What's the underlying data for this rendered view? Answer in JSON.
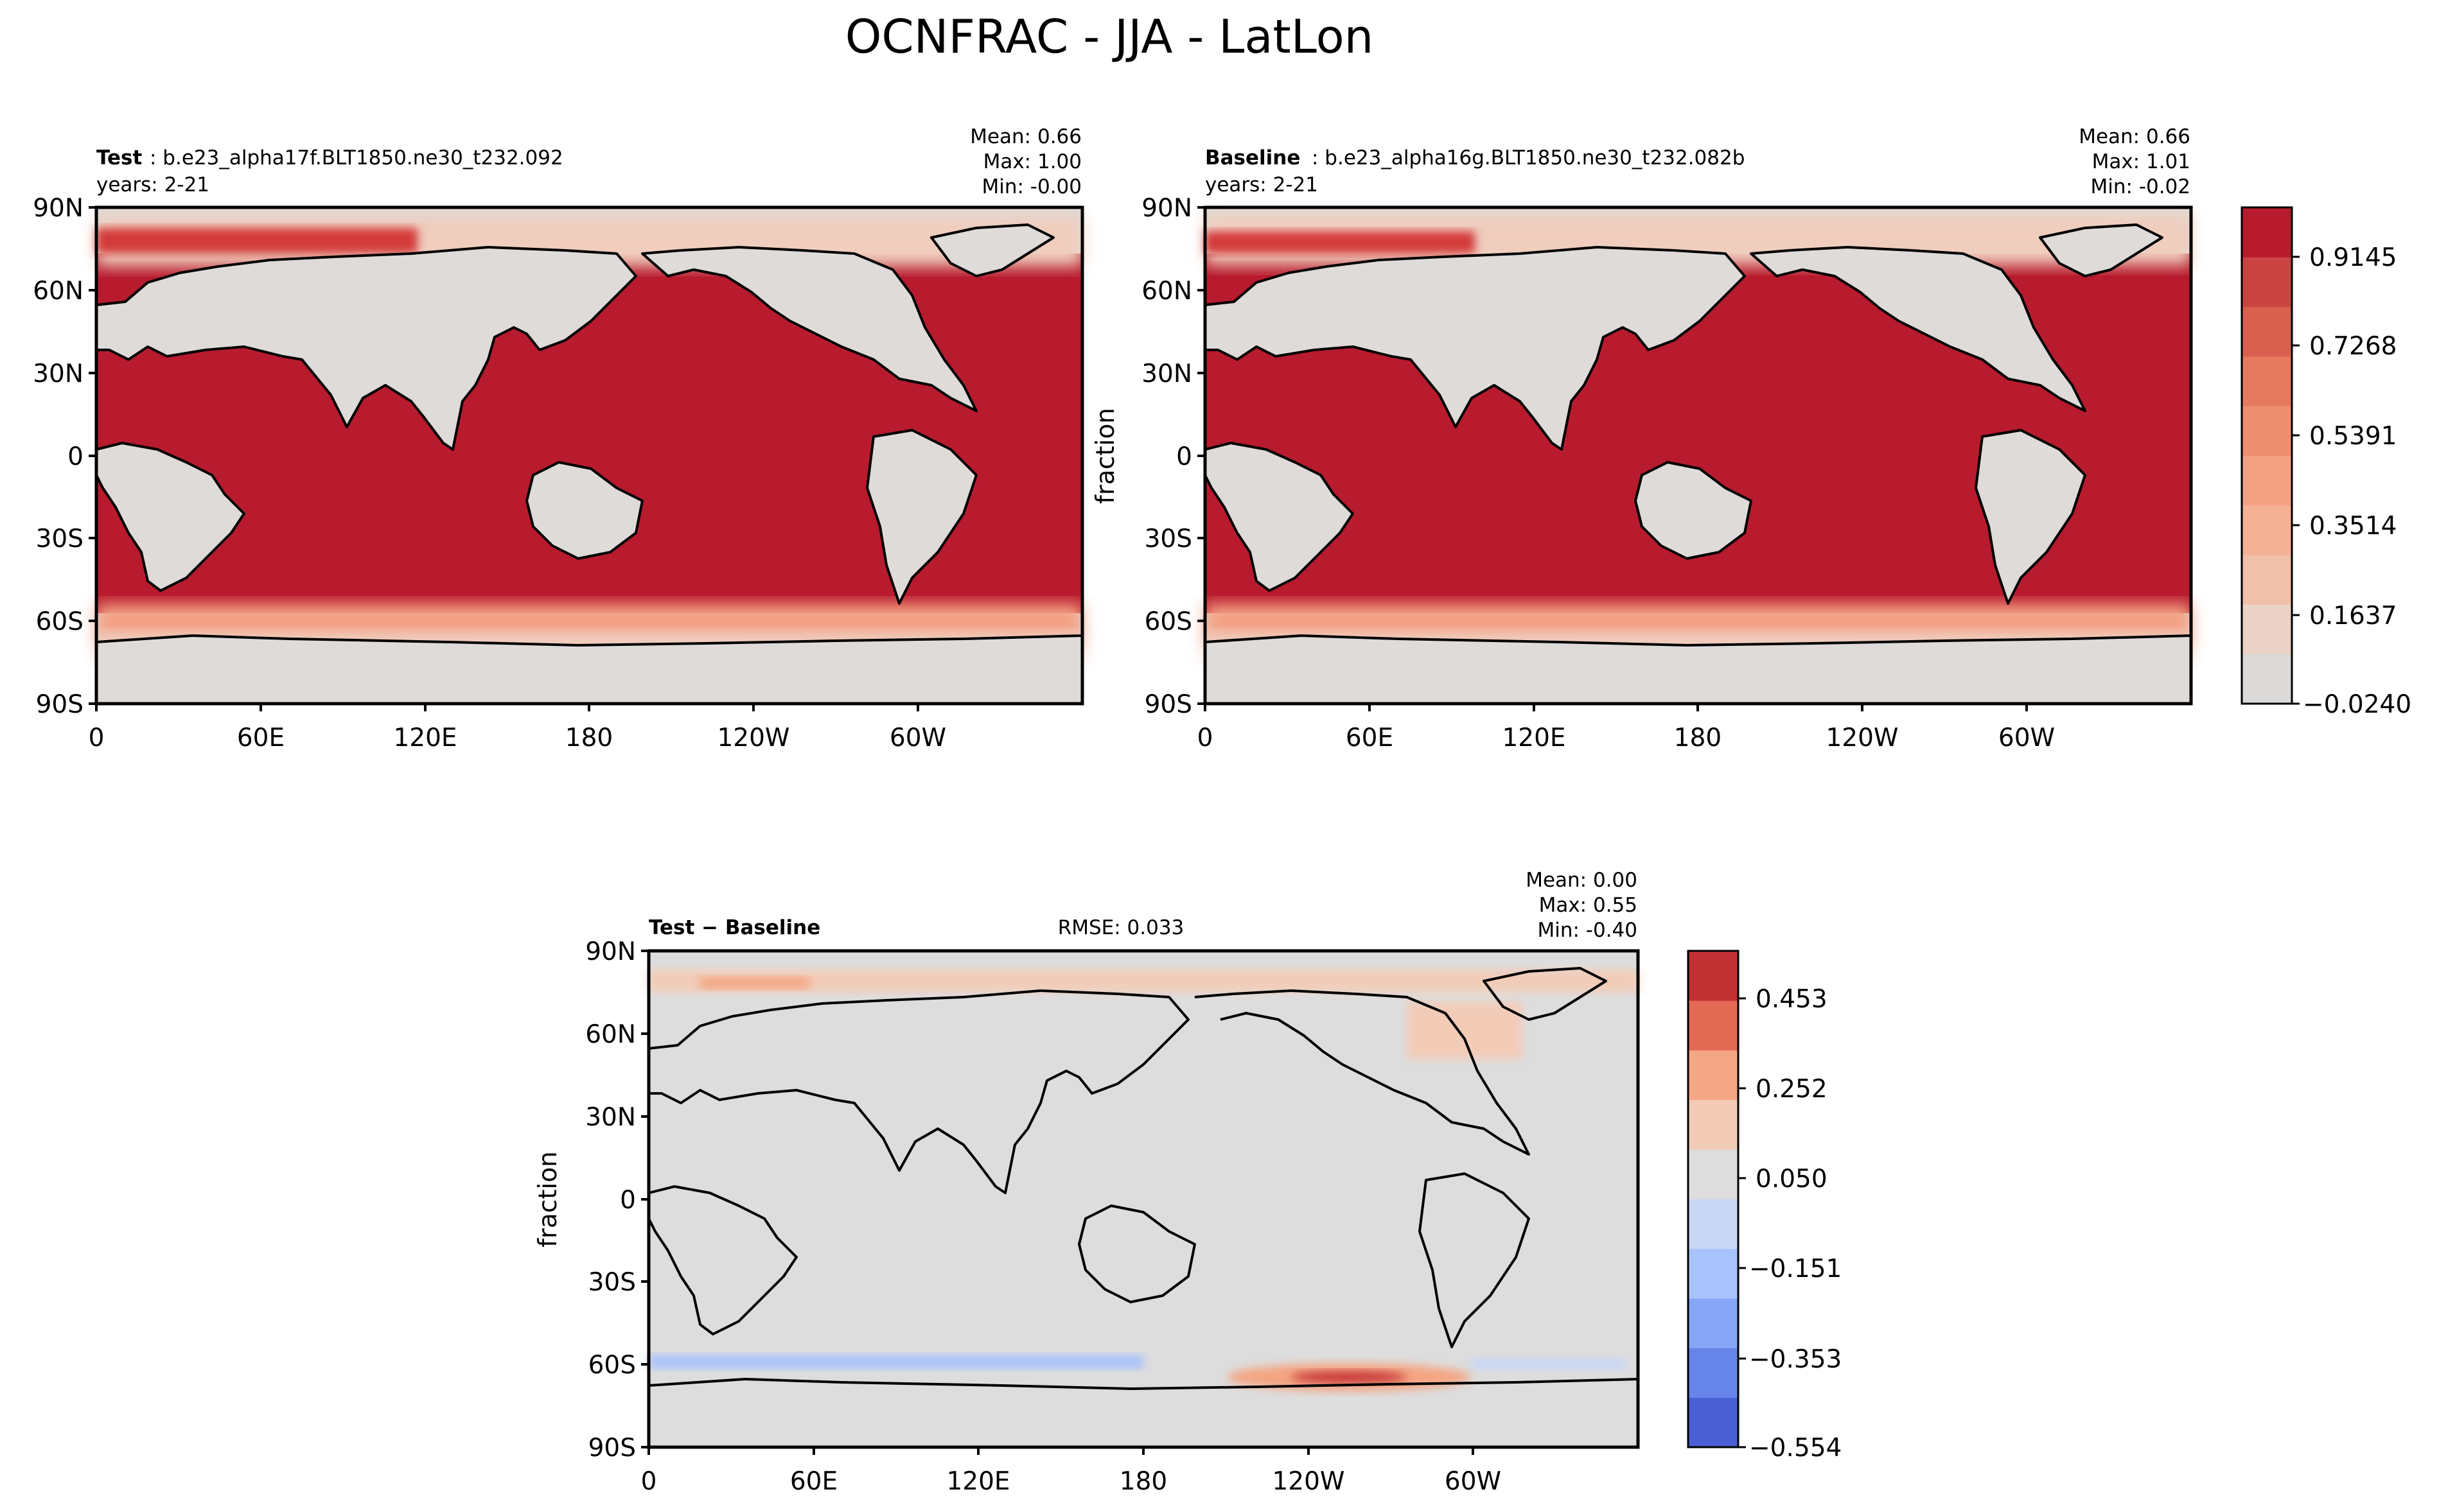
{
  "figure": {
    "title": "OCNFRAC - JJA - LatLon"
  },
  "chart_data": [
    {
      "type": "heatmap",
      "name": "test",
      "label_bold": "Test",
      "label_rest": ": b.e23_alpha17f.BLT1850.ne30_t232.092",
      "years": "years: 2-21",
      "stats": [
        "Mean:  0.66",
        "Max:  1.00",
        "Min: -0.00"
      ],
      "ylabel": "",
      "xticks": [
        "0",
        "60E",
        "120E",
        "180",
        "120W",
        "60W"
      ],
      "yticks": [
        "90N",
        "60N",
        "30N",
        "0",
        "30S",
        "60S",
        "90S"
      ],
      "colors": {
        "ocean": "#b81b2e",
        "land": "#dedbd9",
        "ice": "#f0cdbd",
        "edge": "#f4a184"
      }
    },
    {
      "type": "heatmap",
      "name": "baseline",
      "label_bold": "Baseline",
      "label_rest": ": b.e23_alpha16g.BLT1850.ne30_t232.082b",
      "years": "years: 2-21",
      "stats": [
        "Mean:  0.66",
        "Max:  1.01",
        "Min: -0.02"
      ],
      "ylabel": "fraction",
      "xticks": [
        "0",
        "60E",
        "120E",
        "180",
        "120W",
        "60W"
      ],
      "yticks": [
        "90N",
        "60N",
        "30N",
        "0",
        "30S",
        "60S",
        "90S"
      ],
      "colors": {
        "ocean": "#b81b2e",
        "land": "#dedbd9",
        "ice": "#f0cdbd",
        "edge": "#f4a184"
      }
    },
    {
      "type": "heatmap",
      "name": "difference",
      "label_bold": "Test − Baseline",
      "rmse": "RMSE: 0.033",
      "stats": [
        "Mean:  0.00",
        "Max:  0.55",
        "Min: -0.40"
      ],
      "ylabel": "fraction",
      "xticks": [
        "0",
        "60E",
        "120E",
        "180",
        "120W",
        "60W"
      ],
      "yticks": [
        "90N",
        "60N",
        "30N",
        "0",
        "30S",
        "60S",
        "90S"
      ],
      "colors": {
        "neutral": "#dddddd",
        "pos1": "#f3ccb8",
        "pos2": "#f4a582",
        "neg1": "#c9d6f2",
        "neg2": "#9bb8f5",
        "peak": "#c83a3a"
      }
    }
  ],
  "colorbars": [
    {
      "name": "fraction-colorbar",
      "ticks": [
        "0.9145",
        "0.7268",
        "0.5391",
        "0.3514",
        "0.1637",
        "−0.0240"
      ],
      "colors": [
        "#dcdad8",
        "#ead2c7",
        "#f1c0ab",
        "#f4b196",
        "#f4a184",
        "#ee8f70",
        "#e57a5f",
        "#d9604f",
        "#cb4442",
        "#b81b2e"
      ]
    },
    {
      "name": "difference-colorbar",
      "ticks": [
        "0.453",
        "0.252",
        "0.050",
        "−0.151",
        "−0.353",
        "−0.554"
      ],
      "colors": [
        "#4a5fd4",
        "#6684ea",
        "#86a5f5",
        "#a8c2fb",
        "#c8d7f4",
        "#dddddd",
        "#f1cbb6",
        "#f4a784",
        "#e36a55",
        "#c13134"
      ]
    }
  ]
}
